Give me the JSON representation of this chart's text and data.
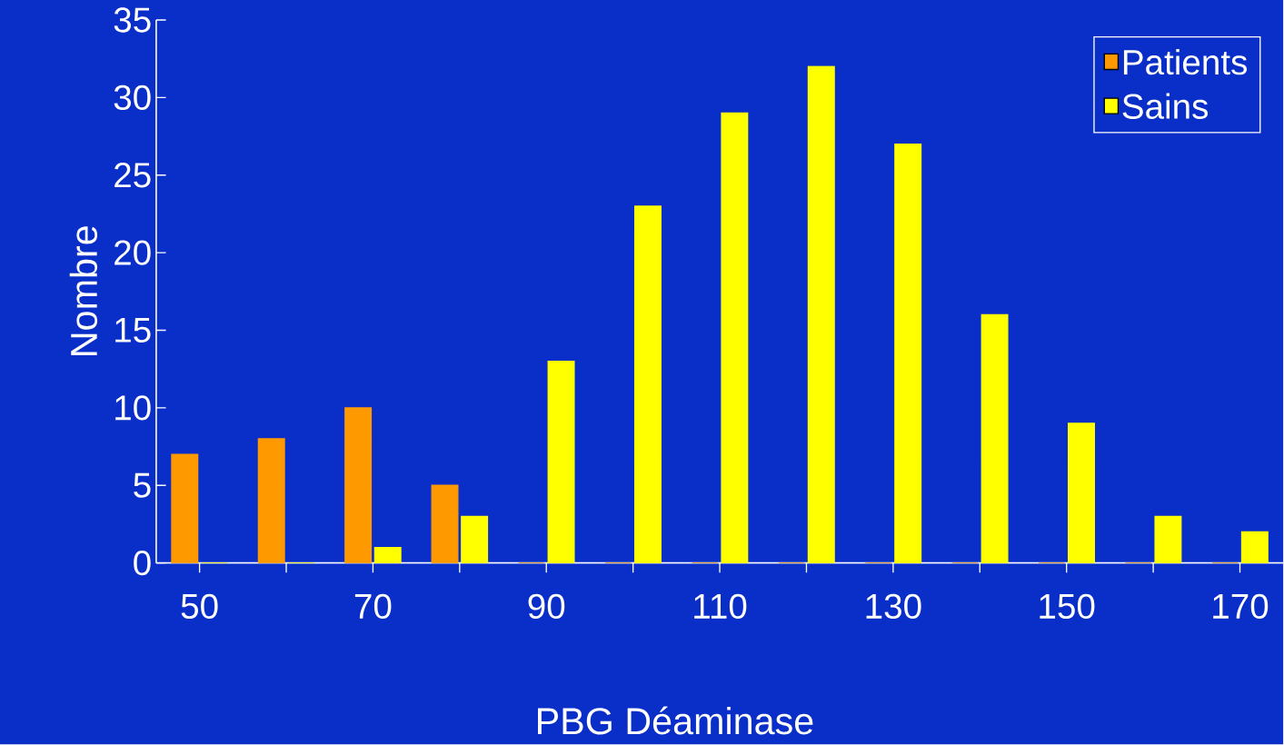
{
  "chart_data": {
    "type": "bar",
    "xlabel": "PBG Déaminase",
    "ylabel": "Nombre",
    "categories": [
      "50",
      null,
      "70",
      null,
      "90",
      null,
      "110",
      null,
      "130",
      null,
      "150",
      null,
      "170"
    ],
    "series": [
      {
        "name": "Patients",
        "color": "#ff9900",
        "values": [
          7,
          8,
          10,
          5,
          0,
          0,
          0,
          0,
          0,
          0,
          0,
          0,
          0
        ]
      },
      {
        "name": "Sains",
        "color": "#ffff00",
        "values": [
          0,
          0,
          1,
          3,
          13,
          23,
          29,
          32,
          27,
          16,
          9,
          3,
          2
        ]
      }
    ],
    "ylim": [
      0,
      35
    ],
    "yticks": [
      0,
      5,
      10,
      15,
      20,
      25,
      30,
      35
    ],
    "grid": false,
    "legend": "top right"
  }
}
